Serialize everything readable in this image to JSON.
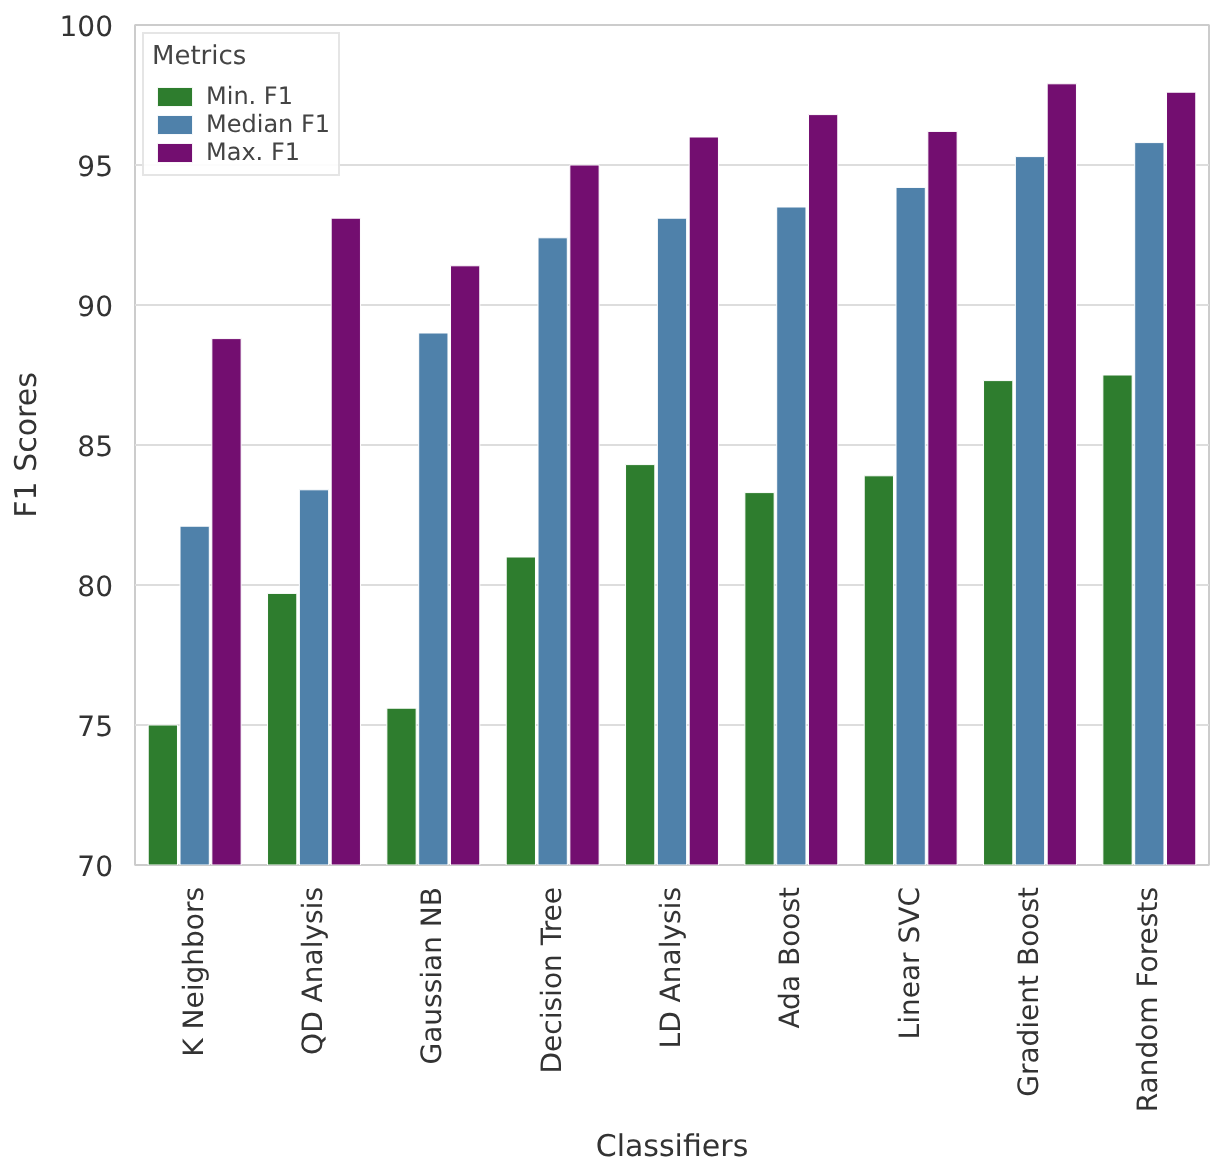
{
  "chart_data": {
    "type": "bar",
    "xlabel": "Classifiers",
    "ylabel": "F1 Scores",
    "legend_title": "Metrics",
    "categories": [
      "K Neighbors",
      "QD Analysis",
      "Gaussian NB",
      "Decision Tree",
      "LD Analysis",
      "Ada Boost",
      "Linear SVC",
      "Gradient Boost",
      "Random Forests"
    ],
    "series": [
      {
        "name": "Min. F1",
        "color": "#2e7d2e",
        "values": [
          75.0,
          79.7,
          75.6,
          81.0,
          84.3,
          83.3,
          83.9,
          87.3,
          87.5
        ]
      },
      {
        "name": "Median F1",
        "color": "#4f81aa",
        "values": [
          82.1,
          83.4,
          89.0,
          92.4,
          93.1,
          93.5,
          94.2,
          95.3,
          95.8
        ]
      },
      {
        "name": "Max. F1",
        "color": "#730e70",
        "values": [
          88.8,
          93.1,
          91.4,
          95.0,
          96.0,
          96.8,
          96.2,
          97.9,
          97.6
        ]
      }
    ],
    "ylim": [
      70,
      100
    ],
    "yticks": [
      70,
      75,
      80,
      85,
      90,
      95,
      100
    ],
    "grid": "y",
    "legend": "top left"
  }
}
